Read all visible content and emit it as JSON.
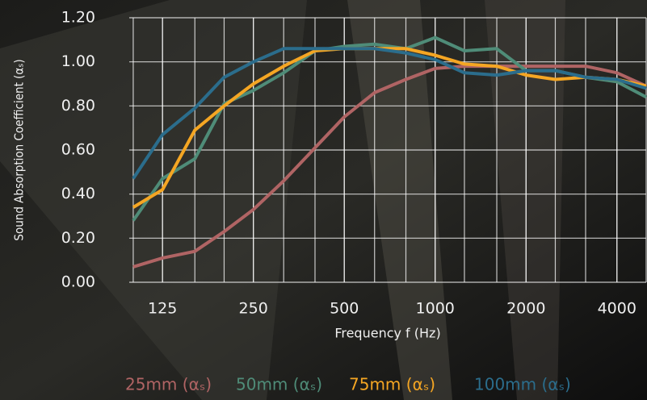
{
  "chart_data": {
    "type": "line",
    "y_label": "Sound Absorption Coefficient (αₛ)",
    "x_label": "Frequency f (Hz)",
    "x": [
      100,
      125,
      160,
      200,
      250,
      315,
      400,
      500,
      630,
      800,
      1000,
      1250,
      1600,
      2000,
      2500,
      3150,
      4000,
      5000
    ],
    "series": [
      {
        "name": "25mm (αₛ)",
        "color": "#b06464",
        "values": [
          0.07,
          0.11,
          0.14,
          0.23,
          0.33,
          0.46,
          0.61,
          0.75,
          0.86,
          0.92,
          0.97,
          0.98,
          0.98,
          0.98,
          0.98,
          0.98,
          0.95,
          0.89
        ]
      },
      {
        "name": "50mm (αₛ)",
        "color": "#4f8c78",
        "values": [
          0.28,
          0.47,
          0.56,
          0.81,
          0.87,
          0.95,
          1.05,
          1.07,
          1.08,
          1.06,
          1.11,
          1.05,
          1.06,
          0.96,
          0.96,
          0.93,
          0.91,
          0.84
        ]
      },
      {
        "name": "75mm (αₛ)",
        "color": "#f5a623",
        "values": [
          0.34,
          0.42,
          0.69,
          0.8,
          0.9,
          0.98,
          1.05,
          1.06,
          1.06,
          1.06,
          1.03,
          0.99,
          0.98,
          0.94,
          0.92,
          0.93,
          0.92,
          0.89
        ]
      },
      {
        "name": "100mm (αₛ)",
        "color": "#2b6d8c",
        "values": [
          0.47,
          0.67,
          0.79,
          0.93,
          1.0,
          1.06,
          1.06,
          1.06,
          1.06,
          1.04,
          1.01,
          0.95,
          0.94,
          0.96,
          0.96,
          0.93,
          0.92,
          0.88
        ]
      }
    ],
    "log_x": true,
    "xlim": [
      97,
      5000
    ],
    "xticks": [
      125,
      250,
      500,
      1000,
      2000,
      4000
    ],
    "ylim": [
      0,
      1.2
    ],
    "yticks": [
      {
        "value": 0,
        "label": "0.00"
      },
      {
        "value": 0.2,
        "label": "0.20"
      },
      {
        "value": 0.4,
        "label": "0.40"
      },
      {
        "value": 0.6,
        "label": "0.60"
      },
      {
        "value": 0.8,
        "label": "0.80"
      },
      {
        "value": 1.0,
        "label": "1.00"
      },
      {
        "value": 1.2,
        "label": "1.20"
      }
    ],
    "grid": true
  }
}
